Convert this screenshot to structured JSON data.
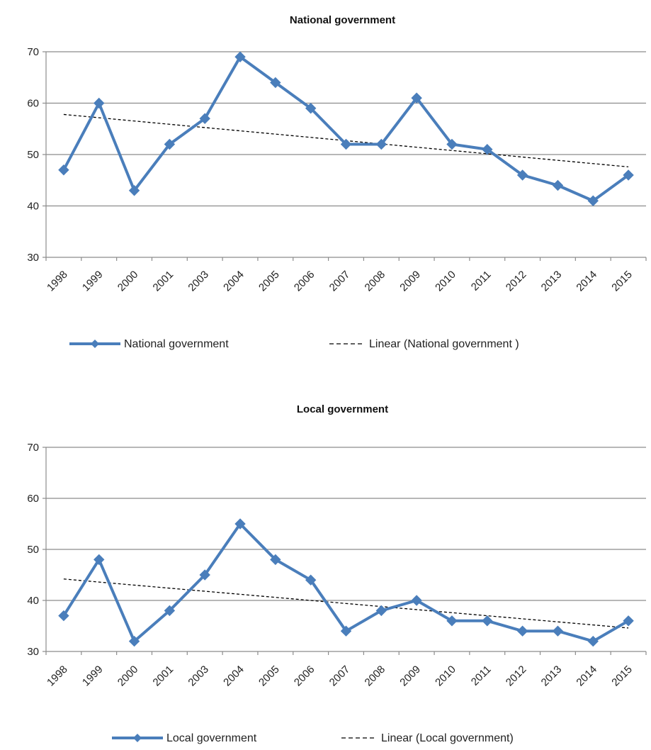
{
  "chart_data": [
    {
      "type": "line",
      "title": "National government",
      "xlabel": "",
      "ylabel": "",
      "ylim": [
        30,
        70
      ],
      "yticks": [
        30,
        40,
        50,
        60,
        70
      ],
      "grid": true,
      "legend_position": "bottom",
      "categories": [
        "1998",
        "1999",
        "2000",
        "2001",
        "2003",
        "2004",
        "2005",
        "2006",
        "2007",
        "2008",
        "2009",
        "2010",
        "2011",
        "2012",
        "2013",
        "2014",
        "2015"
      ],
      "series": [
        {
          "name": "National government",
          "color": "#4a7ebb",
          "marker": "diamond",
          "values": [
            47,
            60,
            43,
            52,
            57,
            69,
            64,
            59,
            52,
            52,
            61,
            52,
            51,
            46,
            44,
            41,
            46
          ]
        }
      ],
      "trendline": {
        "name": "Linear (National government )",
        "style": "dashed",
        "color": "#000000",
        "start": 57.8,
        "end": 47.6
      }
    },
    {
      "type": "line",
      "title": "Local government",
      "xlabel": "",
      "ylabel": "",
      "ylim": [
        30,
        70
      ],
      "yticks": [
        30,
        40,
        50,
        60,
        70
      ],
      "grid": true,
      "legend_position": "bottom",
      "categories": [
        "1998",
        "1999",
        "2000",
        "2001",
        "2003",
        "2004",
        "2005",
        "2006",
        "2007",
        "2008",
        "2009",
        "2010",
        "2011",
        "2012",
        "2013",
        "2014",
        "2015"
      ],
      "series": [
        {
          "name": "Local government",
          "color": "#4a7ebb",
          "marker": "diamond",
          "values": [
            37,
            48,
            32,
            38,
            45,
            55,
            48,
            44,
            34,
            38,
            40,
            36,
            36,
            34,
            34,
            32,
            36
          ]
        }
      ],
      "trendline": {
        "name": "Linear (Local government)",
        "style": "dashed",
        "color": "#000000",
        "start": 44.2,
        "end": 34.6
      }
    }
  ]
}
